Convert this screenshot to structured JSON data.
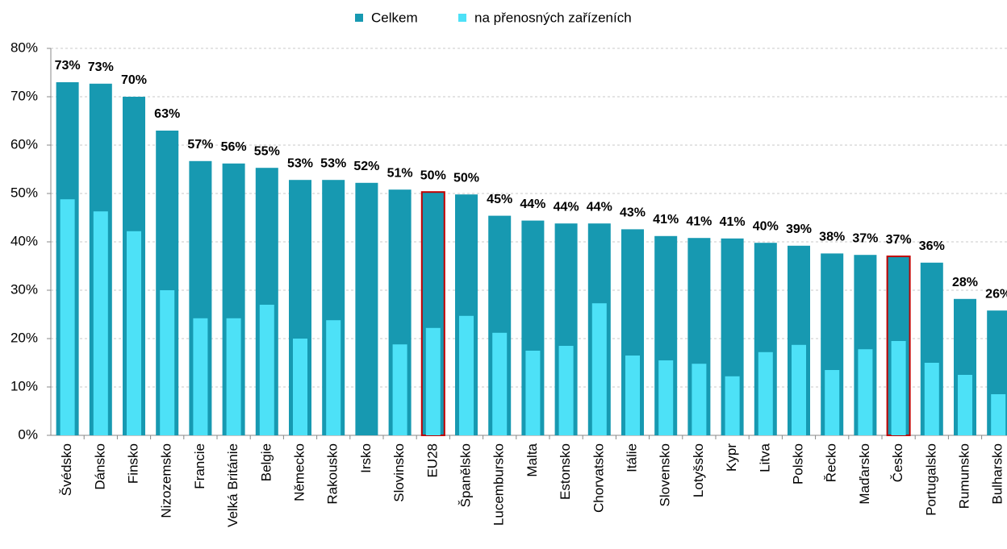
{
  "chart_data": {
    "type": "bar",
    "categories": [
      "Švédsko",
      "Dánsko",
      "Finsko",
      "Nizozemsko",
      "Francie",
      "Velká Británie",
      "Belgie",
      "Německo",
      "Rakousko",
      "Irsko",
      "Slovinsko",
      "EU28",
      "Španělsko",
      "Lucembursko",
      "Malta",
      "Estonsko",
      "Chorvatsko",
      "Itálie",
      "Slovensko",
      "Lotyšsko",
      "Kypr",
      "Litva",
      "Polsko",
      "Řecko",
      "Maďarsko",
      "Česko",
      "Portugalsko",
      "Rumunsko",
      "Bulharsko"
    ],
    "series": [
      {
        "name": "Celkem",
        "color": "#1799b1",
        "values": [
          73.0,
          72.7,
          70.0,
          63.0,
          56.7,
          56.2,
          55.3,
          52.8,
          52.8,
          52.2,
          50.8,
          50.3,
          49.8,
          45.4,
          44.4,
          43.8,
          43.8,
          42.6,
          41.2,
          40.8,
          40.7,
          39.8,
          39.2,
          37.6,
          37.3,
          37.0,
          35.7,
          28.2,
          25.8
        ],
        "value_labels": [
          "73%",
          "73%",
          "70%",
          "63%",
          "57%",
          "56%",
          "55%",
          "53%",
          "53%",
          "52%",
          "51%",
          "50%",
          "50%",
          "45%",
          "44%",
          "44%",
          "44%",
          "43%",
          "41%",
          "41%",
          "41%",
          "40%",
          "39%",
          "38%",
          "37%",
          "37%",
          "36%",
          "28%",
          "26%"
        ]
      },
      {
        "name": "na přenosných zařízeních",
        "color": "#4de1f7",
        "values": [
          48.8,
          46.3,
          42.2,
          30.0,
          24.2,
          24.2,
          27.0,
          20.0,
          23.8,
          null,
          18.8,
          22.2,
          24.7,
          21.2,
          17.5,
          18.5,
          27.3,
          16.5,
          15.5,
          14.8,
          12.2,
          17.2,
          18.7,
          13.5,
          17.8,
          19.5,
          15.0,
          12.5,
          8.5
        ]
      }
    ],
    "ylim": [
      0,
      80
    ],
    "yticks": [
      {
        "value": 0,
        "label": "0%"
      },
      {
        "value": 10,
        "label": "10%"
      },
      {
        "value": 20,
        "label": "20%"
      },
      {
        "value": 30,
        "label": "30%"
      },
      {
        "value": 40,
        "label": "40%"
      },
      {
        "value": 50,
        "label": "50%"
      },
      {
        "value": 60,
        "label": "60%"
      },
      {
        "value": 70,
        "label": "70%"
      },
      {
        "value": 80,
        "label": "80%"
      }
    ],
    "grid": true,
    "legend": "top",
    "highlight": [
      11,
      25
    ],
    "highlight_color": "#c00000"
  }
}
